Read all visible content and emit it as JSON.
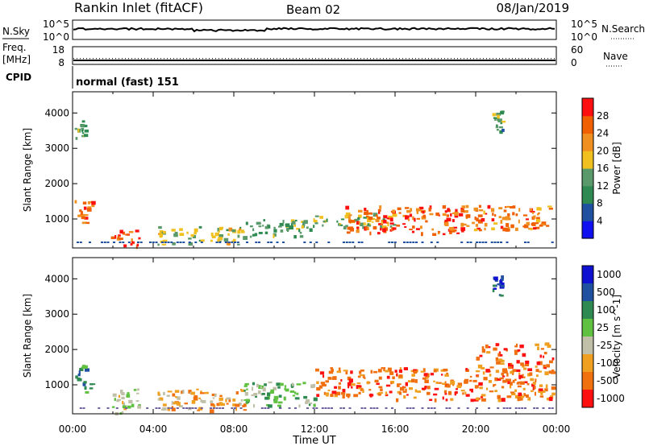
{
  "header": {
    "title": "Rankin Inlet (fitACF)",
    "beam": "Beam 02",
    "date": "08/Jan/2019"
  },
  "top_panels": {
    "nsky_label": "N.Sky",
    "nsky_ticks": [
      "10^5",
      "10^0"
    ],
    "nsearch_label": "N.Search",
    "nsearch_ticks": [
      "10^5",
      "10^0"
    ],
    "freq_label": "Freq.",
    "freq_unit": "[MHz]",
    "freq_ticks": [
      "18",
      "8"
    ],
    "nave_label": "Nave",
    "nave_ticks": [
      "60",
      "0"
    ],
    "cpid_label": "CPID",
    "cpid_text": "normal (fast) 151"
  },
  "colors": {
    "power": [
      "#1010f0",
      "#2050a0",
      "#2e8a50",
      "#5a9a6a",
      "#f0c020",
      "#f09020",
      "#f06000",
      "#ff1010"
    ],
    "velocity": [
      "#1010d0",
      "#2050a0",
      "#2e8a50",
      "#60c040",
      "#c0c0a8",
      "#f0a020",
      "#f07010",
      "#ff1010"
    ]
  },
  "chart_data": [
    {
      "type": "heatmap",
      "name": "power",
      "ylabel": "Slant Range [km]",
      "xlabel": "Time UT",
      "x_ticks": [
        "00:00",
        "04:00",
        "08:00",
        "12:00",
        "16:00",
        "20:00",
        "00:00"
      ],
      "xlim_hours": [
        0,
        24
      ],
      "y_ticks": [
        1000,
        2000,
        3000,
        4000
      ],
      "ylim": [
        180,
        4600
      ],
      "colorbar": {
        "label": "Power [dB]",
        "ticks": [
          "4",
          "8",
          "12",
          "16",
          "20",
          "24",
          "28"
        ],
        "range": [
          0,
          32
        ]
      },
      "regions": [
        {
          "t": [
            0.1,
            1.0
          ],
          "r": [
            800,
            1600
          ],
          "level": 26
        },
        {
          "t": [
            1.9,
            3.3
          ],
          "r": [
            200,
            700
          ],
          "level": 27
        },
        {
          "t": [
            4.2,
            8.5
          ],
          "r": [
            300,
            800
          ],
          "level": 16
        },
        {
          "t": [
            8.5,
            11.8
          ],
          "r": [
            500,
            1000
          ],
          "level": 14
        },
        {
          "t": [
            11.8,
            16.0
          ],
          "r": [
            800,
            1200
          ],
          "level": 15
        },
        {
          "t": [
            13.5,
            19.5
          ],
          "r": [
            600,
            1400
          ],
          "level": 26
        },
        {
          "t": [
            19.5,
            23.8
          ],
          "r": [
            700,
            1400
          ],
          "level": 24
        },
        {
          "t": [
            20.8,
            21.3
          ],
          "r": [
            3500,
            4100
          ],
          "level": 12
        },
        {
          "t": [
            0.1,
            0.6
          ],
          "r": [
            3300,
            3800
          ],
          "level": 14
        }
      ]
    },
    {
      "type": "heatmap",
      "name": "velocity",
      "ylabel": "Slant Range [km]",
      "xlabel": "Time UT",
      "x_ticks": [
        "00:00",
        "04:00",
        "08:00",
        "12:00",
        "16:00",
        "20:00",
        "00:00"
      ],
      "xlim_hours": [
        0,
        24
      ],
      "y_ticks": [
        1000,
        2000,
        3000,
        4000
      ],
      "ylim": [
        180,
        4600
      ],
      "colorbar": {
        "label": "Velocity [m s^-1]",
        "ticks": [
          "1000",
          "500",
          "100",
          "25",
          "-25",
          "-100",
          "-500",
          "-1000"
        ]
      },
      "regions": [
        {
          "t": [
            0.1,
            1.0
          ],
          "r": [
            800,
            1600
          ],
          "class": 2
        },
        {
          "t": [
            1.9,
            3.3
          ],
          "r": [
            200,
            900
          ],
          "class": 4
        },
        {
          "t": [
            4.2,
            8.5
          ],
          "r": [
            300,
            900
          ],
          "class": 5
        },
        {
          "t": [
            8.5,
            12.0
          ],
          "r": [
            400,
            1100
          ],
          "class": 3
        },
        {
          "t": [
            12.0,
            16.0
          ],
          "r": [
            700,
            1500
          ],
          "class": 6
        },
        {
          "t": [
            16.0,
            20.0
          ],
          "r": [
            600,
            1500
          ],
          "class": 6
        },
        {
          "t": [
            20.0,
            23.8
          ],
          "r": [
            600,
            2200
          ],
          "class": 6
        },
        {
          "t": [
            20.8,
            21.3
          ],
          "r": [
            3500,
            4100
          ],
          "class": 1
        }
      ]
    }
  ],
  "nave": {
    "a": 20,
    "b": 30
  },
  "nsky_level": 0.55
}
